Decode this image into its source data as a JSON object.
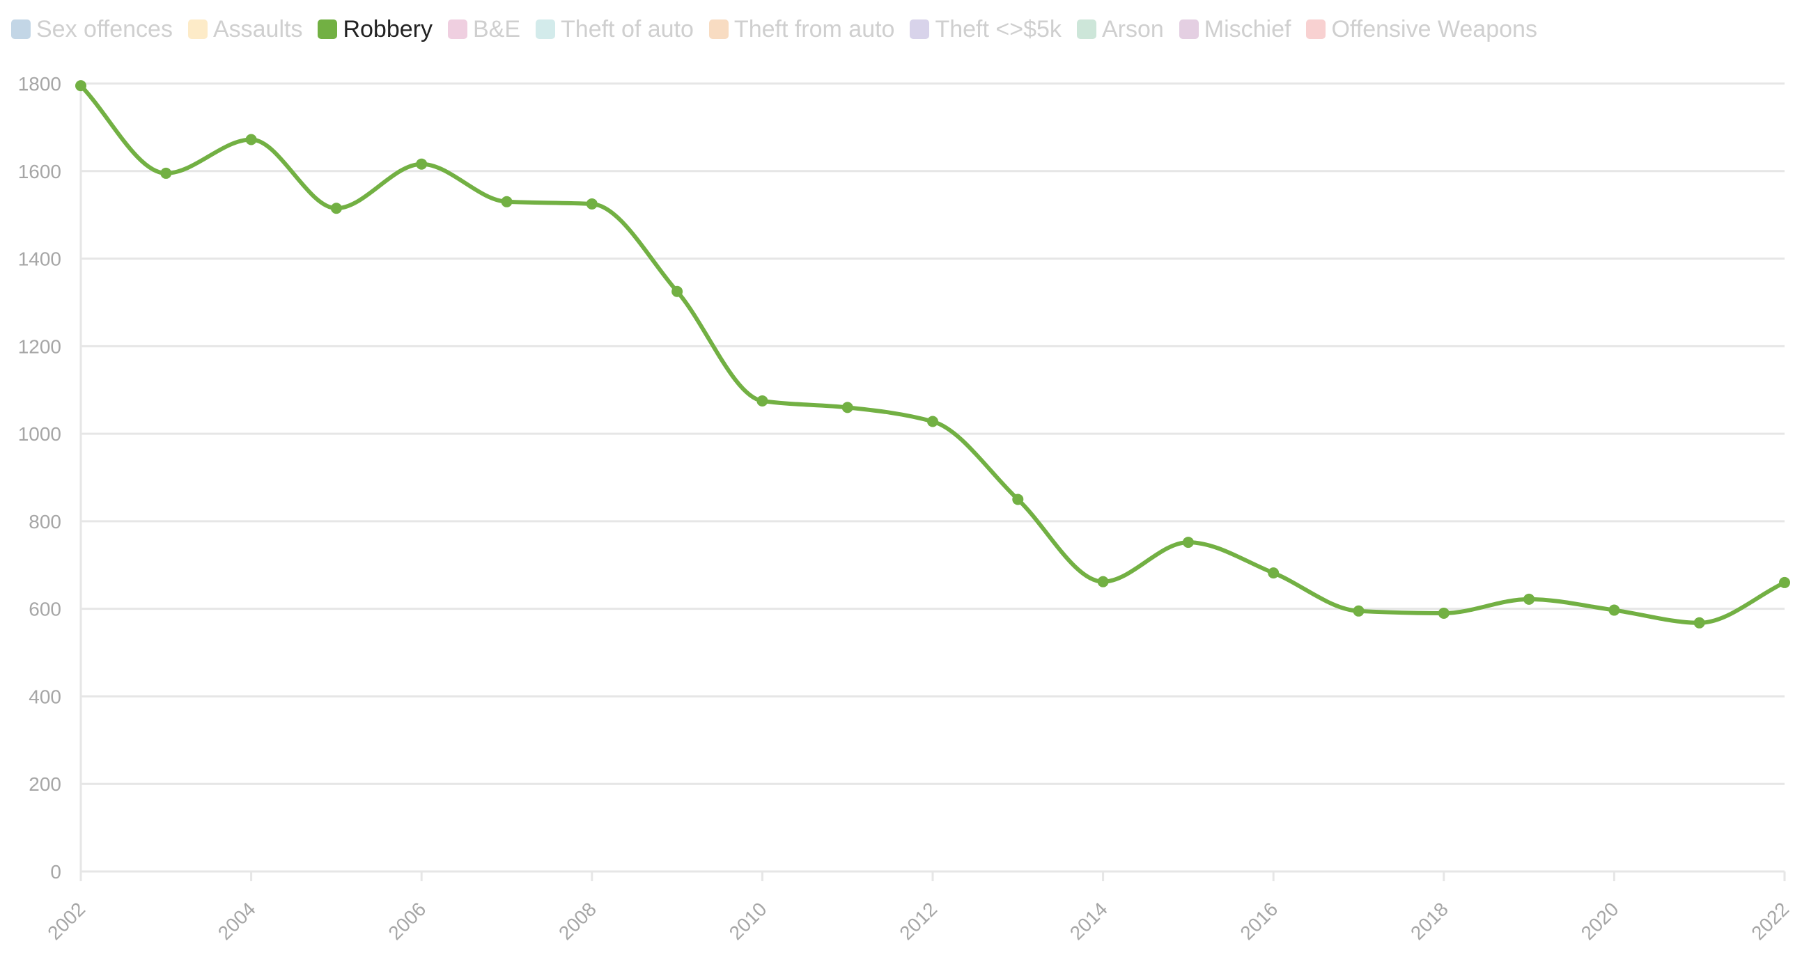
{
  "legend": {
    "items": [
      {
        "label": "Sex offences",
        "color": "#c3d6e6",
        "active": false
      },
      {
        "label": "Assaults",
        "color": "#fdebc8",
        "active": false
      },
      {
        "label": "Robbery",
        "color": "#72b043",
        "active": true
      },
      {
        "label": "B&E",
        "color": "#efcfe0",
        "active": false
      },
      {
        "label": "Theft of auto",
        "color": "#d3ebeb",
        "active": false
      },
      {
        "label": "Theft from auto",
        "color": "#f8dcc2",
        "active": false
      },
      {
        "label": "Theft <>$5k",
        "color": "#d8d3ea",
        "active": false
      },
      {
        "label": "Arson",
        "color": "#cde6d9",
        "active": false
      },
      {
        "label": "Mischief",
        "color": "#e4cfe2",
        "active": false
      },
      {
        "label": "Offensive Weapons",
        "color": "#f8d1d1",
        "active": false
      }
    ]
  },
  "colors": {
    "line": "#72b043",
    "grid": "#e6e6e6",
    "axis_text": "#a6a6a6"
  },
  "chart_data": {
    "type": "line",
    "title": "",
    "xlabel": "",
    "ylabel": "",
    "x": [
      2002,
      2003,
      2004,
      2005,
      2006,
      2007,
      2008,
      2009,
      2010,
      2011,
      2012,
      2013,
      2014,
      2015,
      2016,
      2017,
      2018,
      2019,
      2020,
      2021,
      2022
    ],
    "series": [
      {
        "name": "Robbery",
        "values": [
          1795,
          1595,
          1672,
          1515,
          1616,
          1530,
          1525,
          1325,
          1075,
          1060,
          1028,
          850,
          662,
          752,
          682,
          595,
          590,
          622,
          597,
          568,
          660
        ]
      }
    ],
    "xlim": [
      2002,
      2022
    ],
    "ylim": [
      0,
      1800
    ],
    "y_ticks": [
      0,
      200,
      400,
      600,
      800,
      1000,
      1200,
      1400,
      1600,
      1800
    ],
    "x_ticks": [
      2002,
      2004,
      2006,
      2008,
      2010,
      2012,
      2014,
      2016,
      2018,
      2020,
      2022
    ],
    "grid": true,
    "legend_position": "top-left",
    "curve": "smooth"
  }
}
